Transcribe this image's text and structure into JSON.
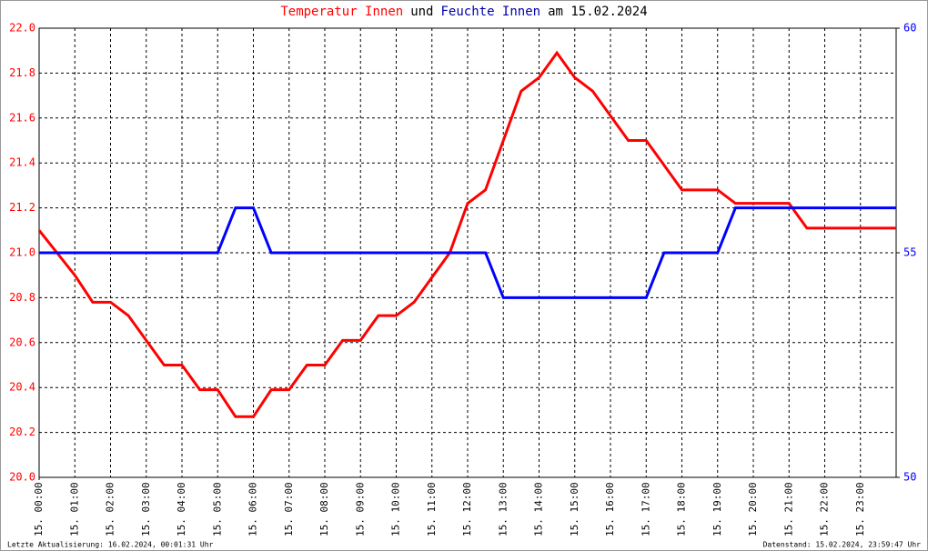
{
  "chart_data": {
    "type": "line",
    "title": [
      "Temperatur Innen",
      "und",
      "Feuchte Innen",
      "am 15.02.2024"
    ],
    "title_colors": [
      "#ff0000",
      "#000000",
      "#0000aa",
      "#000000"
    ],
    "footer_left": "Letzte Aktualisierung: 16.02.2024, 00:01:31 Uhr",
    "footer_right": "Datenstand: 15.02.2024, 23:59:47 Uhr",
    "x": [
      0,
      0.5,
      1,
      1.5,
      2,
      2.5,
      3,
      3.5,
      4,
      4.5,
      5,
      5.5,
      6,
      6.5,
      7,
      7.5,
      8,
      8.5,
      9,
      9.5,
      10,
      10.5,
      11,
      11.5,
      12,
      12.5,
      13,
      13.5,
      14,
      14.5,
      15,
      15.5,
      16,
      16.5,
      17,
      17.5,
      18,
      18.5,
      19,
      19.5,
      20,
      20.5,
      21,
      21.5,
      22,
      22.5,
      23,
      23.5,
      24
    ],
    "series": [
      {
        "name": "Temperatur Innen",
        "color": "#ff0000",
        "axis": "y",
        "values": [
          21.1,
          21.0,
          20.9,
          20.78,
          20.78,
          20.72,
          20.61,
          20.5,
          20.5,
          20.39,
          20.39,
          20.27,
          20.27,
          20.39,
          20.39,
          20.5,
          20.5,
          20.61,
          20.61,
          20.72,
          20.72,
          20.78,
          20.89,
          21.0,
          21.22,
          21.28,
          21.5,
          21.72,
          21.78,
          21.89,
          21.78,
          21.72,
          21.61,
          21.5,
          21.5,
          21.39,
          21.28,
          21.28,
          21.28,
          21.22,
          21.22,
          21.22,
          21.22,
          21.11,
          21.11,
          21.11,
          21.11,
          21.11,
          21.11
        ]
      },
      {
        "name": "Feuchte Innen",
        "color": "#0000ff",
        "axis": "y2",
        "values": [
          55,
          55,
          55,
          55,
          55,
          55,
          55,
          55,
          55,
          55,
          55,
          56,
          56,
          55,
          55,
          55,
          55,
          55,
          55,
          55,
          55,
          55,
          55,
          55,
          55,
          55,
          54,
          54,
          54,
          54,
          54,
          54,
          54,
          54,
          54,
          55,
          55,
          55,
          55,
          56,
          56,
          56,
          56,
          56,
          56,
          56,
          56,
          56,
          56
        ]
      }
    ],
    "xlim": [
      0,
      24
    ],
    "xticks": [
      {
        "value": 0,
        "label": "15. 00:00"
      },
      {
        "value": 1,
        "label": "15. 01:00"
      },
      {
        "value": 2,
        "label": "15. 02:00"
      },
      {
        "value": 3,
        "label": "15. 03:00"
      },
      {
        "value": 4,
        "label": "15. 04:00"
      },
      {
        "value": 5,
        "label": "15. 05:00"
      },
      {
        "value": 6,
        "label": "15. 06:00"
      },
      {
        "value": 7,
        "label": "15. 07:00"
      },
      {
        "value": 8,
        "label": "15. 08:00"
      },
      {
        "value": 9,
        "label": "15. 09:00"
      },
      {
        "value": 10,
        "label": "15. 10:00"
      },
      {
        "value": 11,
        "label": "15. 11:00"
      },
      {
        "value": 12,
        "label": "15. 12:00"
      },
      {
        "value": 13,
        "label": "15. 13:00"
      },
      {
        "value": 14,
        "label": "15. 14:00"
      },
      {
        "value": 15,
        "label": "15. 15:00"
      },
      {
        "value": 16,
        "label": "15. 16:00"
      },
      {
        "value": 17,
        "label": "15. 17:00"
      },
      {
        "value": 18,
        "label": "15. 18:00"
      },
      {
        "value": 19,
        "label": "15. 19:00"
      },
      {
        "value": 20,
        "label": "15. 20:00"
      },
      {
        "value": 21,
        "label": "15. 21:00"
      },
      {
        "value": 22,
        "label": "15. 22:00"
      },
      {
        "value": 23,
        "label": "15. 23:00"
      }
    ],
    "ylim": [
      20,
      22
    ],
    "yticks": [
      {
        "value": 20,
        "label": "20.0"
      },
      20.2,
      20.4,
      20.6,
      20.8,
      {
        "value": 21,
        "label": "21.0"
      },
      21.2,
      21.4,
      21.6,
      21.8,
      {
        "value": 22,
        "label": "22.0"
      }
    ],
    "y_color": "#ff0000",
    "y2lim": [
      50,
      60
    ],
    "y2ticks": [
      50,
      55,
      60
    ],
    "y2_color": "#0000ff",
    "grid": true
  }
}
